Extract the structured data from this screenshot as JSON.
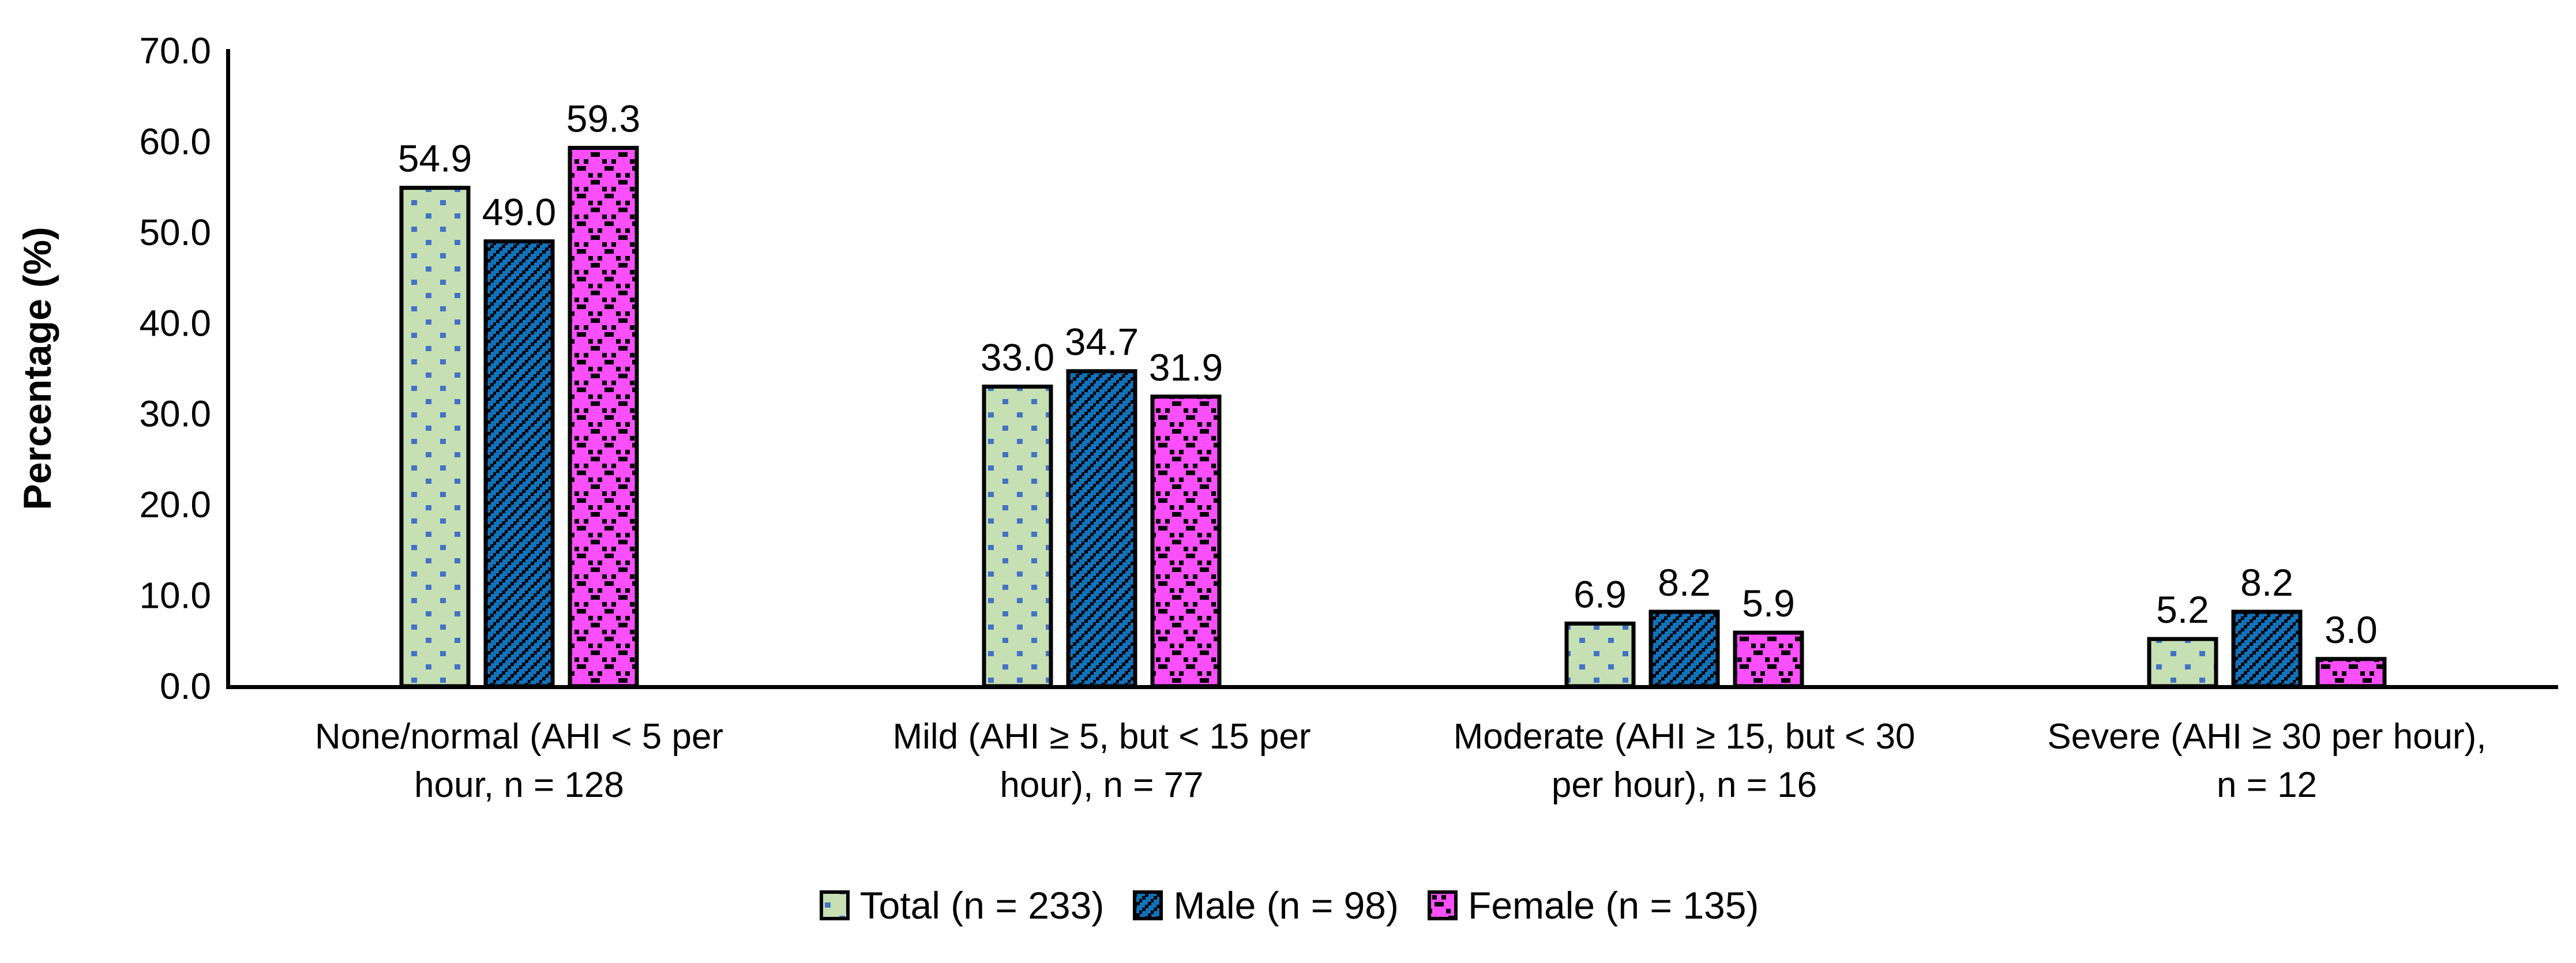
{
  "page": {
    "background": "#ffffff"
  },
  "chart_data": {
    "type": "bar",
    "title": "",
    "xlabel": "",
    "ylabel": "Percentage (%)",
    "ylim": [
      0,
      70
    ],
    "ytick_interval": 10,
    "ytick_labels": [
      "0.0",
      "10.0",
      "20.0",
      "30.0",
      "40.0",
      "50.0",
      "60.0",
      "70.0"
    ],
    "grid": false,
    "legend_position": "bottom",
    "categories": [
      {
        "line1": "None/normal  (AHI < 5 per",
        "line2": "hour, n = 128"
      },
      {
        "line1": "Mild (AHI ≥ 5, but < 15 per",
        "line2": "hour), n = 77"
      },
      {
        "line1": "Moderate (AHI ≥ 15, but < 30",
        "line2": "per hour), n = 16"
      },
      {
        "line1": "Severe  (AHI ≥ 30 per hour),",
        "line2": "n = 12"
      }
    ],
    "series": [
      {
        "name": "Total (n = 233)",
        "key": "total",
        "values": [
          54.9,
          33.0,
          6.9,
          5.2
        ],
        "value_labels": [
          "54.9",
          "33.0",
          "6.9",
          "5.2"
        ],
        "fill": "#c6e0b4",
        "pattern": "dots",
        "accent": "#4472c4"
      },
      {
        "name": "Male (n = 98)",
        "key": "male",
        "values": [
          49.0,
          34.7,
          8.2,
          8.2
        ],
        "value_labels": [
          "49.0",
          "34.7",
          "8.2",
          "8.2"
        ],
        "fill": "#1172bc",
        "pattern": "diagonal-dash",
        "accent": "#000000"
      },
      {
        "name": "Female (n = 135)",
        "key": "female",
        "values": [
          59.3,
          31.9,
          5.9,
          3.0
        ],
        "value_labels": [
          "59.3",
          "31.9",
          "5.9",
          "3.0"
        ],
        "fill": "#fb4ffb",
        "pattern": "crosshatch-dash",
        "accent": "#000000"
      }
    ]
  }
}
